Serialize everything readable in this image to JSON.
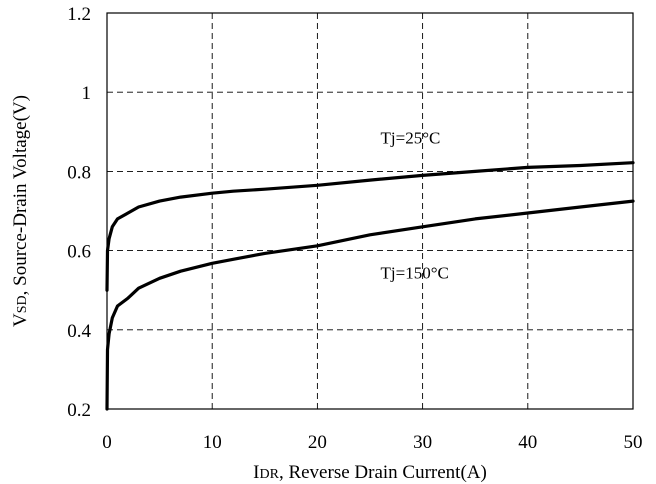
{
  "chart_data": {
    "type": "line",
    "xlim": [
      0,
      50
    ],
    "ylim": [
      0.2,
      1.2
    ],
    "x_ticks": [
      "0",
      "10",
      "20",
      "30",
      "40",
      "50"
    ],
    "y_ticks": [
      "0.2",
      "0.4",
      "0.6",
      "0.8",
      "1",
      "1.2"
    ],
    "grid": true,
    "xlabel": {
      "main": "I",
      "sub": "DR",
      "rest": ", Reverse Drain Current(A)"
    },
    "ylabel": {
      "main": "V",
      "sub": "SD",
      "rest": ", Source-Drain Voltage(V)"
    },
    "series": [
      {
        "name": "Tj=25°C",
        "label_at": [
          26,
          0.87
        ],
        "points": [
          [
            0,
            0.5
          ],
          [
            0.05,
            0.6
          ],
          [
            0.2,
            0.63
          ],
          [
            0.5,
            0.66
          ],
          [
            1,
            0.68
          ],
          [
            2,
            0.695
          ],
          [
            3,
            0.71
          ],
          [
            5,
            0.725
          ],
          [
            7,
            0.735
          ],
          [
            10,
            0.745
          ],
          [
            12,
            0.75
          ],
          [
            15,
            0.755
          ],
          [
            20,
            0.765
          ],
          [
            25,
            0.778
          ],
          [
            30,
            0.79
          ],
          [
            35,
            0.8
          ],
          [
            40,
            0.81
          ],
          [
            45,
            0.815
          ],
          [
            50,
            0.822
          ]
        ]
      },
      {
        "name": "Tj=150°C",
        "label_at": [
          26,
          0.53
        ],
        "points": [
          [
            0,
            0.2
          ],
          [
            0.05,
            0.35
          ],
          [
            0.2,
            0.39
          ],
          [
            0.5,
            0.43
          ],
          [
            1,
            0.46
          ],
          [
            2,
            0.48
          ],
          [
            3,
            0.505
          ],
          [
            5,
            0.53
          ],
          [
            7,
            0.548
          ],
          [
            10,
            0.568
          ],
          [
            12,
            0.578
          ],
          [
            15,
            0.593
          ],
          [
            20,
            0.612
          ],
          [
            25,
            0.64
          ],
          [
            30,
            0.66
          ],
          [
            35,
            0.68
          ],
          [
            40,
            0.695
          ],
          [
            45,
            0.71
          ],
          [
            50,
            0.725
          ]
        ]
      }
    ]
  }
}
